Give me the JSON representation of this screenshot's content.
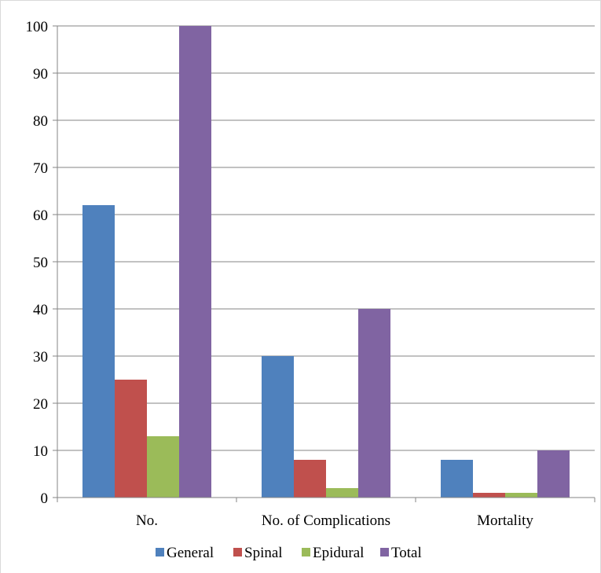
{
  "chart_data": {
    "type": "bar",
    "title": "",
    "xlabel": "",
    "ylabel": "",
    "categories": [
      "No.",
      "No. of Complications",
      "Mortality"
    ],
    "series": [
      {
        "name": "General",
        "color": "#4f81bd",
        "values": [
          62,
          30,
          8
        ]
      },
      {
        "name": "Spinal",
        "color": "#c0504d",
        "values": [
          25,
          8,
          1
        ]
      },
      {
        "name": "Epidural",
        "color": "#9bbb59",
        "values": [
          13,
          2,
          1
        ]
      },
      {
        "name": "Total",
        "color": "#8064a2",
        "values": [
          100,
          40,
          10
        ]
      }
    ],
    "ylim": [
      0,
      100
    ],
    "yticks": [
      "0",
      "10",
      "20",
      "30",
      "40",
      "50",
      "60",
      "70",
      "80",
      "90",
      "100"
    ],
    "grid": true,
    "legend": "bottom"
  }
}
